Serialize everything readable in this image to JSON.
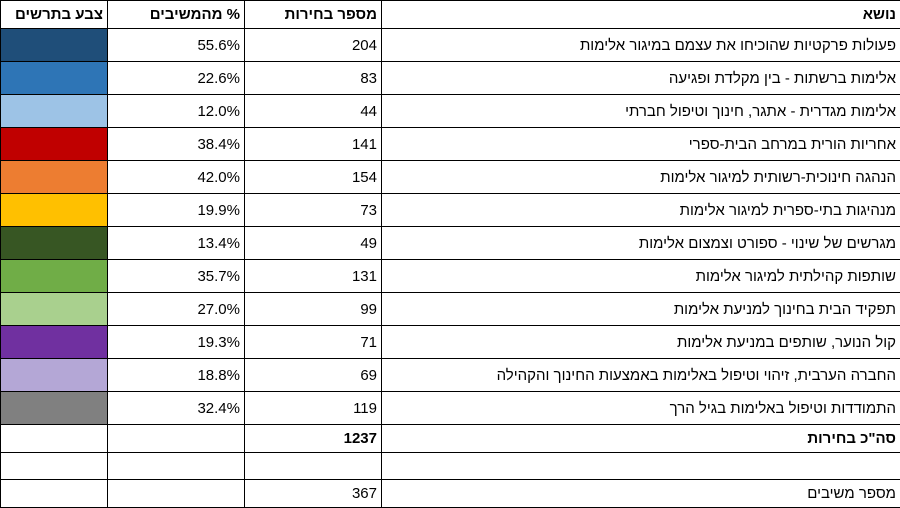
{
  "table": {
    "header": [
      "נושא",
      "מספר בחירות",
      "% מהמשיבים",
      "צבע בתרשים"
    ],
    "rows": [
      {
        "topic": "פעולות פרקטיות שהוכיחו את עצמם במיגור אלימות",
        "count": 204,
        "percent": "55.6%",
        "color": "#1f4e79"
      },
      {
        "topic": "אלימות ברשתות - בין מקלדת ופגיעה",
        "count": 83,
        "percent": "22.6%",
        "color": "#2e75b6"
      },
      {
        "topic": "אלימות מגדרית - אתגר, חינוך וטיפול חברתי",
        "count": 44,
        "percent": "12.0%",
        "color": "#9dc3e6"
      },
      {
        "topic": "אחריות הורית במרחב הבית-ספרי",
        "count": 141,
        "percent": "38.4%",
        "color": "#c00000"
      },
      {
        "topic": "הנהגה חינוכית-רשותית למיגור אלימות",
        "count": 154,
        "percent": "42.0%",
        "color": "#ed7d31"
      },
      {
        "topic": "מנהיגות בתי-ספרית למיגור אלימות",
        "count": 73,
        "percent": "19.9%",
        "color": "#ffc000"
      },
      {
        "topic": "מגרשים של שינוי - ספורט וצמצום אלימות",
        "count": 49,
        "percent": "13.4%",
        "color": "#375623"
      },
      {
        "topic": "שותפות קהילתית למיגור אלימות",
        "count": 131,
        "percent": "35.7%",
        "color": "#70ad47"
      },
      {
        "topic": "תפקיד הבית בחינוך למניעת אלימות",
        "count": 99,
        "percent": "27.0%",
        "color": "#a9d08e"
      },
      {
        "topic": "קול הנוער, שותפים במניעת אלימות",
        "count": 71,
        "percent": "19.3%",
        "color": "#7030a0"
      },
      {
        "topic": "החברה הערבית, זיהוי וטיפול באלימות באמצעות החינוך והקהילה",
        "count": 69,
        "percent": "18.8%",
        "color": "#b4a7d6"
      },
      {
        "topic": "התמודדות וטיפול באלימות בגיל הרך",
        "count": 119,
        "percent": "32.4%",
        "color": "#808080"
      }
    ],
    "total": {
      "label": "סה\"כ בחירות",
      "count": 1237
    },
    "respondents": {
      "label": "מספר משיבים",
      "count": 367
    }
  }
}
